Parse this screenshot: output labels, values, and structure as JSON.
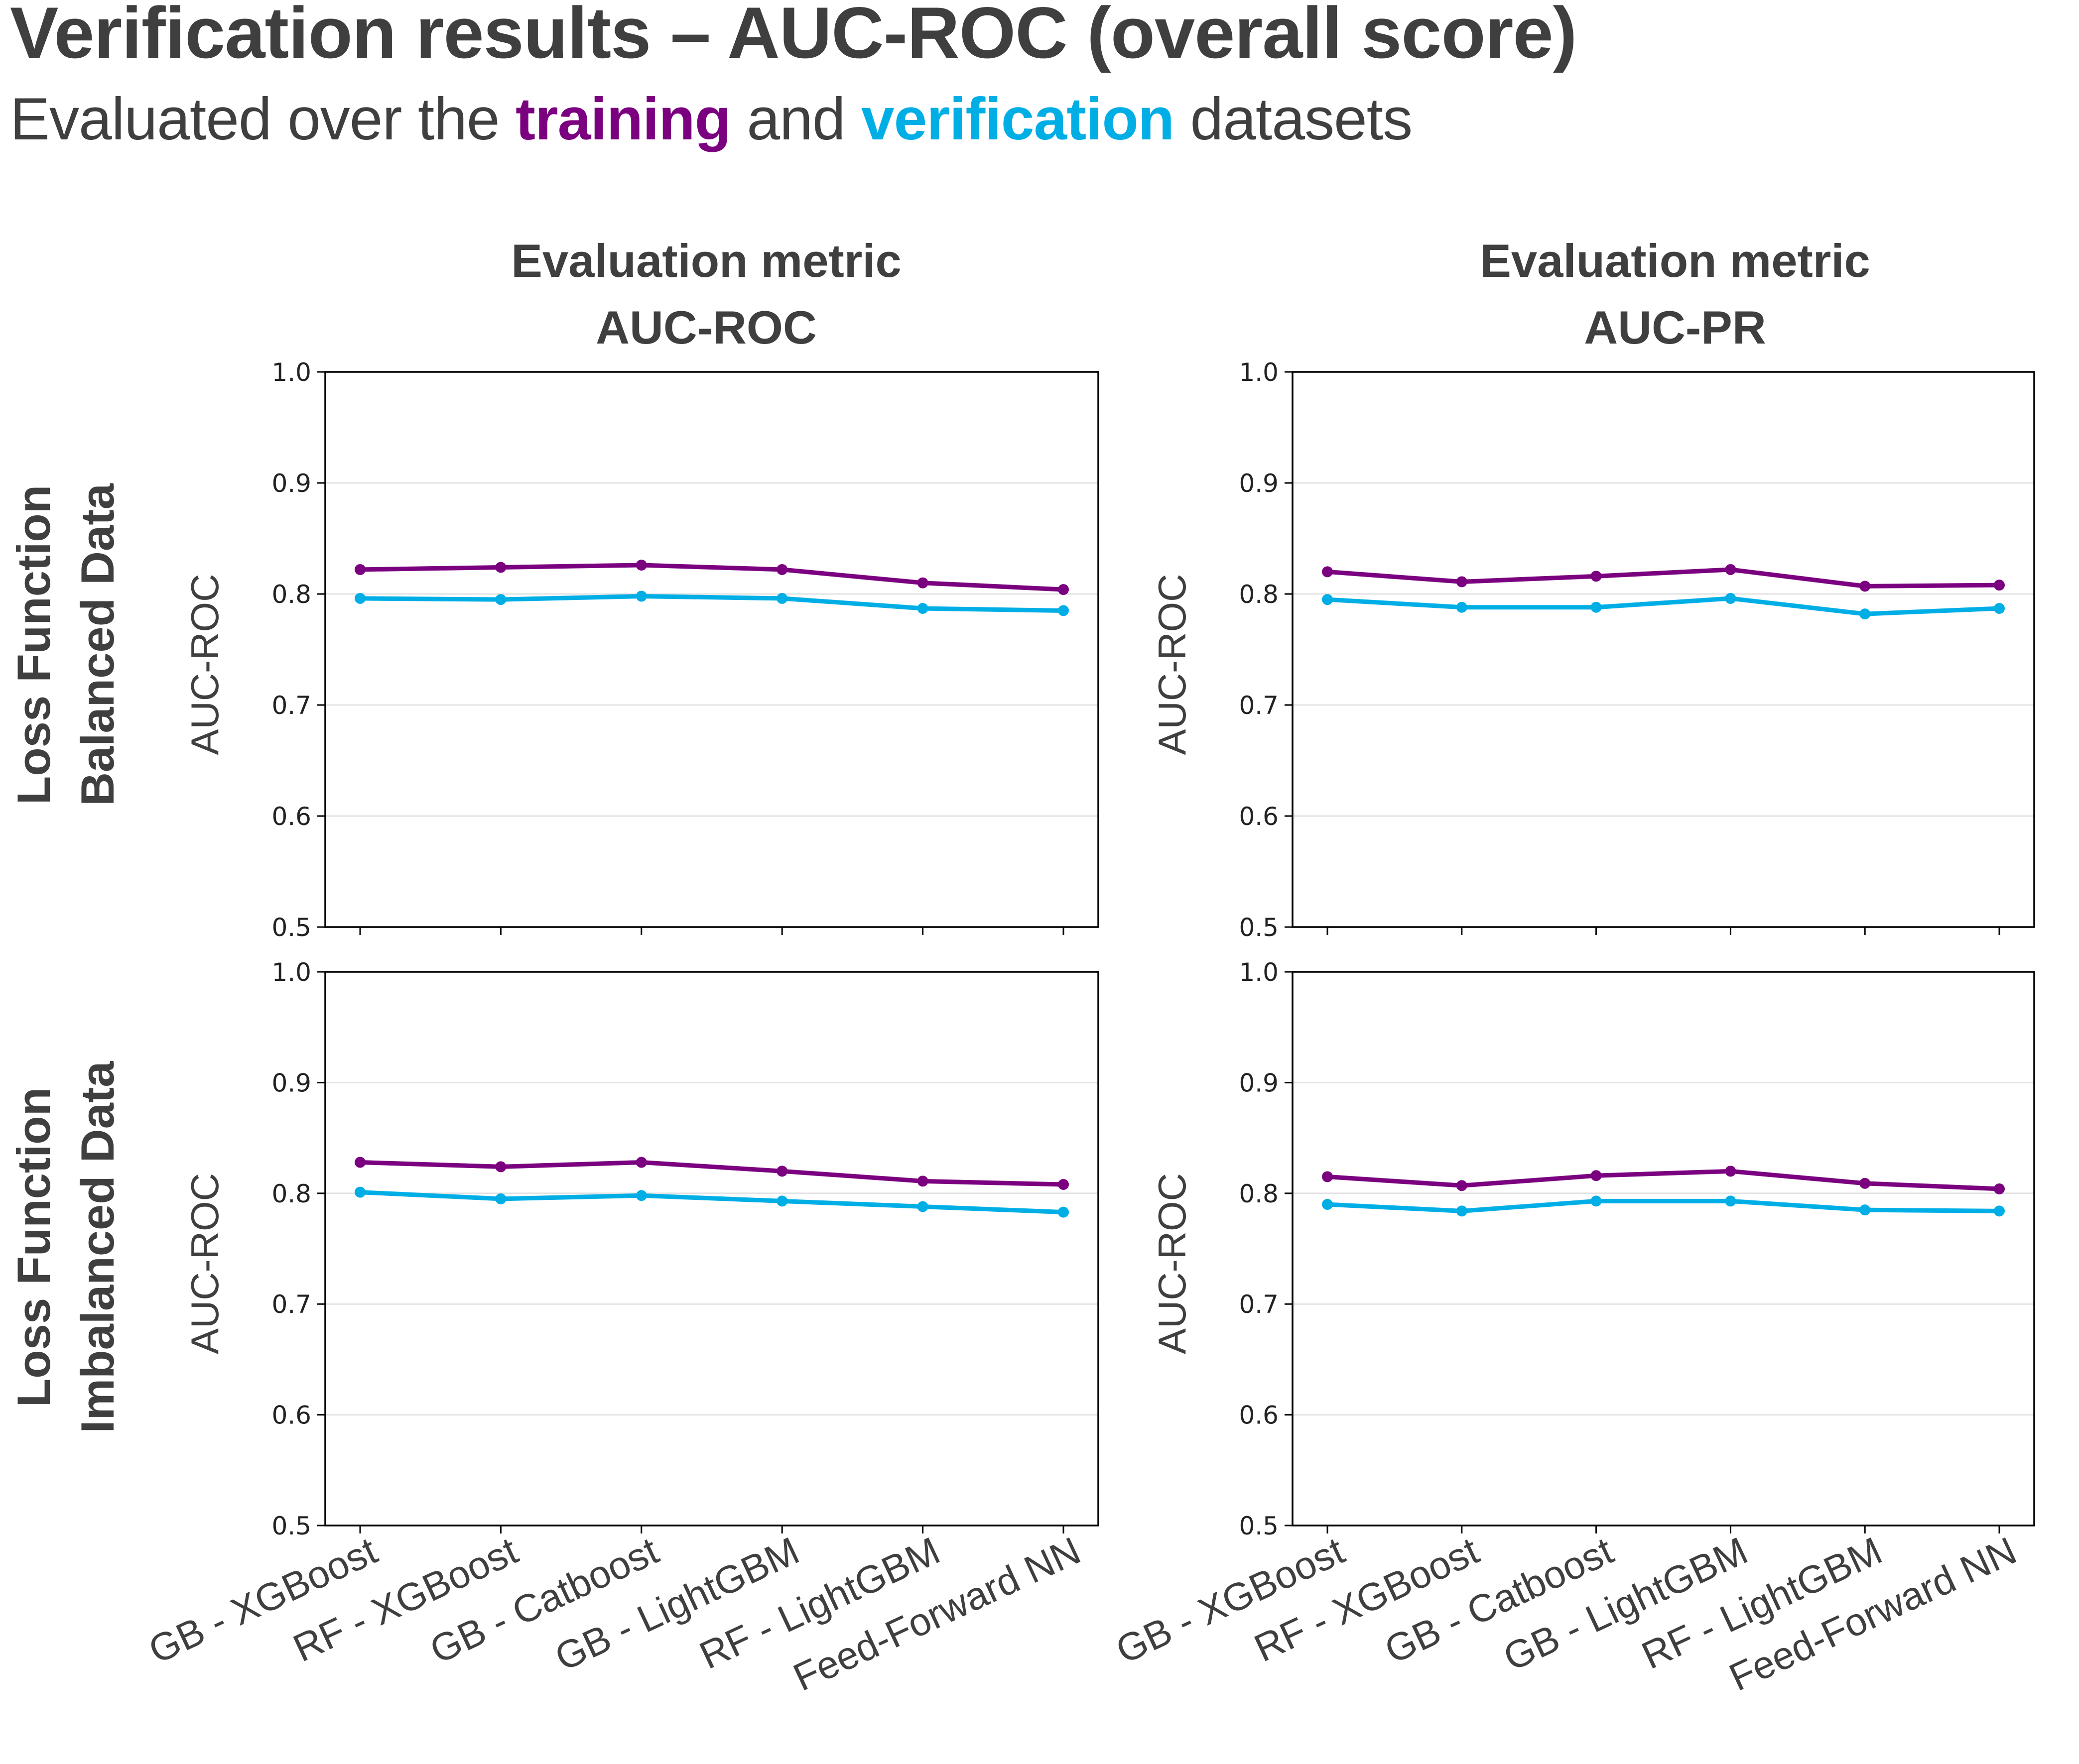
{
  "title": "Verification results – AUC-ROC (overall score)",
  "subtitle": {
    "prefix": "Evaluated over the ",
    "training": "training",
    "middle": " and ",
    "verification": "verification",
    "suffix": " datasets"
  },
  "colors": {
    "training": "#7b0080",
    "verification": "#00aee6",
    "text": "#3f3f3f"
  },
  "column_headers": [
    {
      "line1": "Evaluation metric",
      "line2": "AUC-ROC"
    },
    {
      "line1": "Evaluation metric",
      "line2": "AUC-PR"
    }
  ],
  "row_headers": [
    {
      "line1": "Loss Function",
      "line2": "Balanced Data"
    },
    {
      "line1": "Loss Function",
      "line2": "Imbalanced Data"
    }
  ],
  "chart_data": [
    {
      "type": "line",
      "ylabel": "AUC-ROC",
      "ylim": [
        0.5,
        1.0
      ],
      "yticks": [
        "1.0",
        "0.9",
        "0.8",
        "0.7",
        "0.6",
        "0.5"
      ],
      "categories": [
        "GB - XGBoost",
        "RF - XGBoost",
        "GB - Catboost",
        "GB - LightGBM",
        "RF - LightGBM",
        "Feed-Forward NN"
      ],
      "series": [
        {
          "values": [
            0.822,
            0.824,
            0.826,
            0.822,
            0.81,
            0.804
          ]
        },
        {
          "values": [
            0.796,
            0.795,
            0.798,
            0.796,
            0.787,
            0.785
          ]
        }
      ]
    },
    {
      "type": "line",
      "ylabel": "AUC-ROC",
      "ylim": [
        0.5,
        1.0
      ],
      "yticks": [
        "1.0",
        "0.9",
        "0.8",
        "0.7",
        "0.6",
        "0.5"
      ],
      "categories": [
        "GB - XGBoost",
        "RF - XGBoost",
        "GB - Catboost",
        "GB - LightGBM",
        "RF - LightGBM",
        "Feed-Forward NN"
      ],
      "series": [
        {
          "values": [
            0.82,
            0.811,
            0.816,
            0.822,
            0.807,
            0.808
          ]
        },
        {
          "values": [
            0.795,
            0.788,
            0.788,
            0.796,
            0.782,
            0.787
          ]
        }
      ]
    },
    {
      "type": "line",
      "ylabel": "AUC-ROC",
      "ylim": [
        0.5,
        1.0
      ],
      "yticks": [
        "1.0",
        "0.9",
        "0.8",
        "0.7",
        "0.6",
        "0.5"
      ],
      "categories": [
        "GB - XGBoost",
        "RF - XGBoost",
        "GB - Catboost",
        "GB - LightGBM",
        "RF - LightGBM",
        "Feed-Forward NN"
      ],
      "series": [
        {
          "values": [
            0.828,
            0.824,
            0.828,
            0.82,
            0.811,
            0.808
          ]
        },
        {
          "values": [
            0.801,
            0.795,
            0.798,
            0.793,
            0.788,
            0.783
          ]
        }
      ]
    },
    {
      "type": "line",
      "ylabel": "AUC-ROC",
      "ylim": [
        0.5,
        1.0
      ],
      "yticks": [
        "1.0",
        "0.9",
        "0.8",
        "0.7",
        "0.6",
        "0.5"
      ],
      "categories": [
        "GB - XGBoost",
        "RF - XGBoost",
        "GB - Catboost",
        "GB - LightGBM",
        "RF - LightGBM",
        "Feed-Forward NN"
      ],
      "series": [
        {
          "values": [
            0.815,
            0.807,
            0.816,
            0.82,
            0.809,
            0.804
          ]
        },
        {
          "values": [
            0.79,
            0.784,
            0.793,
            0.793,
            0.785,
            0.784
          ]
        }
      ]
    }
  ]
}
